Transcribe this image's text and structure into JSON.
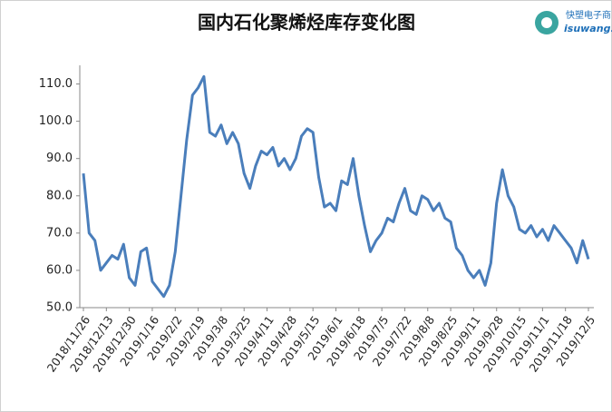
{
  "chart_data": {
    "type": "line",
    "title": "国内石化聚烯烃库存变化图",
    "logo": {
      "cn": "快塑电子商",
      "en": "isuwang.c"
    },
    "categories": [
      "2018/11/26",
      null,
      null,
      null,
      "2018/12/13",
      null,
      null,
      null,
      "2018/12/30",
      null,
      null,
      null,
      "2019/1/16",
      null,
      null,
      null,
      "2019/2/2",
      null,
      null,
      null,
      "2019/2/19",
      null,
      null,
      null,
      "2019/3/8",
      null,
      null,
      null,
      "2019/3/25",
      null,
      null,
      null,
      "2019/4/11",
      null,
      null,
      null,
      "2019/4/28",
      null,
      null,
      null,
      "2019/5/15",
      null,
      null,
      null,
      "2019/6/1",
      null,
      null,
      null,
      "2019/6/18",
      null,
      null,
      null,
      "2019/7/5",
      null,
      null,
      null,
      "2019/7/22",
      null,
      null,
      null,
      "2019/8/8",
      null,
      null,
      null,
      "2019/8/25",
      null,
      null,
      null,
      "2019/9/11",
      null,
      null,
      null,
      "2019/9/28",
      null,
      null,
      null,
      "2019/10/15",
      null,
      null,
      null,
      "2019/11/1",
      null,
      null,
      null,
      "2019/11/18",
      null,
      null,
      null,
      "2019/12/5"
    ],
    "series": [
      {
        "name": null,
        "color": "#4a7ebb",
        "values": [
          86,
          70,
          68,
          60,
          62,
          64,
          63,
          67,
          58,
          56,
          65,
          66,
          57,
          55,
          53,
          56,
          65,
          80,
          95,
          107,
          109,
          112,
          97,
          96,
          99,
          94,
          97,
          94,
          86,
          82,
          88,
          92,
          91,
          93,
          88,
          90,
          87,
          90,
          96,
          98,
          97,
          85,
          77,
          78,
          76,
          84,
          83,
          90,
          80,
          72,
          65,
          68,
          70,
          74,
          73,
          78,
          82,
          76,
          75,
          80,
          79,
          76,
          78,
          74,
          73,
          66,
          64,
          60,
          58,
          60,
          56,
          62,
          78,
          87,
          80,
          77,
          71,
          70,
          72,
          69,
          71,
          68,
          72,
          70,
          68,
          66,
          62,
          68,
          63
        ]
      }
    ],
    "ylim": [
      50,
      115
    ],
    "yticks": [
      {
        "value": 50,
        "label": "50.0"
      },
      {
        "value": 60,
        "label": "60.0"
      },
      {
        "value": 70,
        "label": "70.0"
      },
      {
        "value": 80,
        "label": "80.0"
      },
      {
        "value": 90,
        "label": "90.0"
      },
      {
        "value": 100,
        "label": "100.0"
      },
      {
        "value": 110,
        "label": "110.0"
      }
    ],
    "grid": false
  }
}
